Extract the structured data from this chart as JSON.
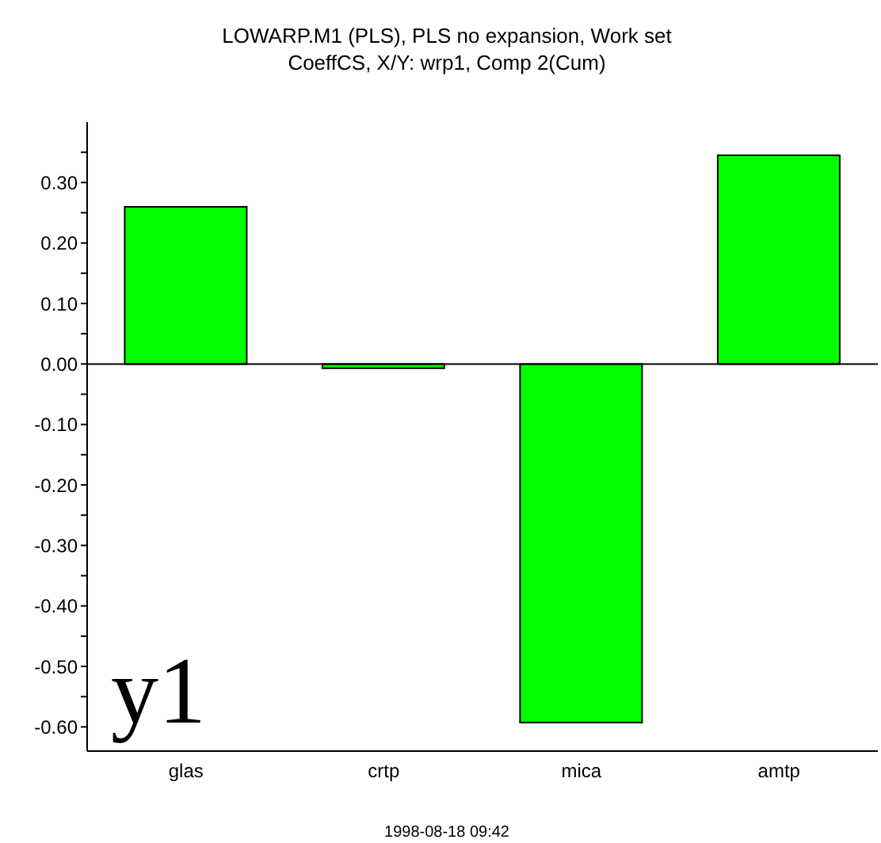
{
  "chart_data": {
    "type": "bar",
    "title": "LOWARP.M1 (PLS), PLS no expansion, Work set",
    "subtitle": "CoeffCS, X/Y: wrp1, Comp 2(Cum)",
    "categories": [
      "glas",
      "crtp",
      "mica",
      "amtp"
    ],
    "values": [
      0.26,
      -0.007,
      -0.593,
      0.345
    ],
    "color": "#00ff00",
    "ylim": [
      -0.64,
      0.4
    ],
    "yticks": [
      {
        "value": -0.6,
        "label": "-0.60"
      },
      {
        "value": -0.55,
        "label": null
      },
      {
        "value": -0.5,
        "label": "-0.50"
      },
      {
        "value": -0.45,
        "label": null
      },
      {
        "value": -0.4,
        "label": "-0.40"
      },
      {
        "value": -0.35,
        "label": null
      },
      {
        "value": -0.3,
        "label": "-0.30"
      },
      {
        "value": -0.25,
        "label": null
      },
      {
        "value": -0.2,
        "label": "-0.20"
      },
      {
        "value": -0.15,
        "label": null
      },
      {
        "value": -0.1,
        "label": "-0.10"
      },
      {
        "value": -0.05,
        "label": null
      },
      {
        "value": 0,
        "label": "0.00"
      },
      {
        "value": 0.05,
        "label": null
      },
      {
        "value": 0.1,
        "label": "0.10"
      },
      {
        "value": 0.15,
        "label": null
      },
      {
        "value": 0.2,
        "label": "0.20"
      },
      {
        "value": 0.25,
        "label": null
      },
      {
        "value": 0.3,
        "label": "0.30"
      },
      {
        "value": 0.35,
        "label": null
      }
    ],
    "ref_lines": [
      {
        "axis": "y",
        "value": 0
      }
    ],
    "annotations": [
      "y1",
      "1998-08-18 09:42"
    ]
  }
}
